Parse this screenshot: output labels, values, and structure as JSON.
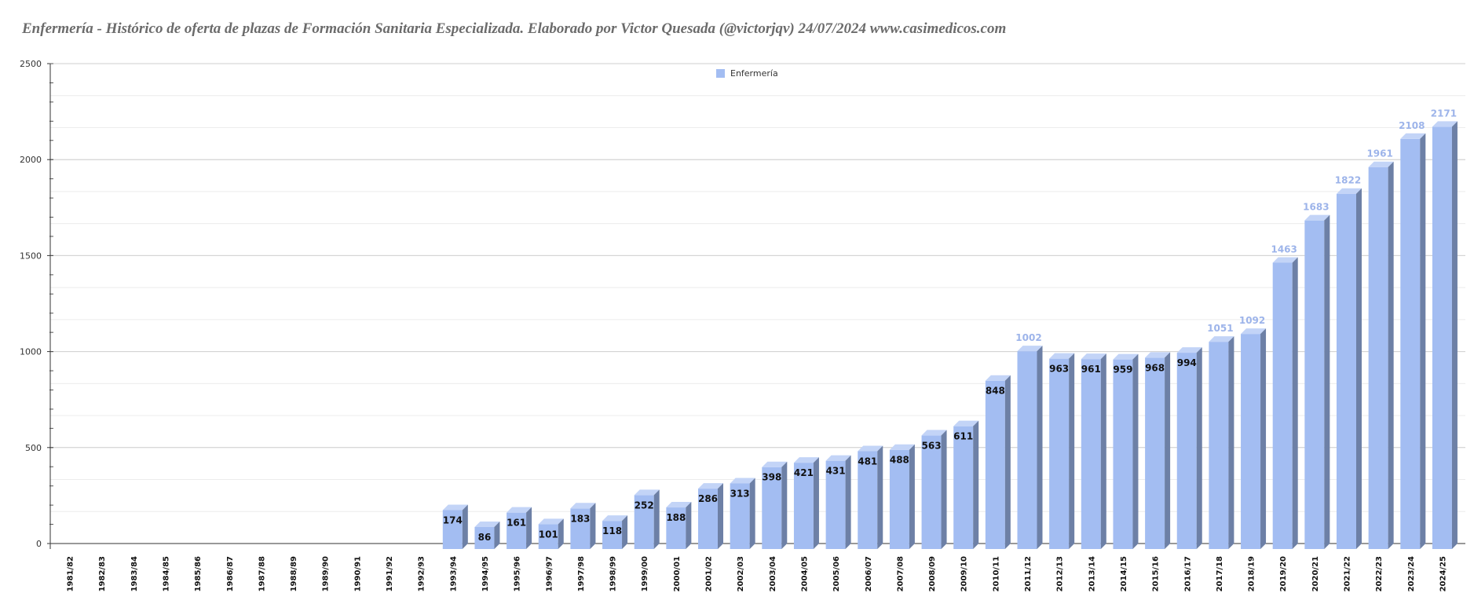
{
  "chart_data": {
    "type": "bar",
    "title": "Enfermería - Histórico de oferta de plazas de Formación Sanitaria Especializada. Elaborado por Victor Quesada (@victorjqv)  24/07/2024 www.casimedicos.com",
    "xlabel": "",
    "ylabel": "",
    "ylim": [
      0,
      2500
    ],
    "yticks": [
      "0",
      "500",
      "1000",
      "1500",
      "2000",
      "2500"
    ],
    "grid": true,
    "legend_position": "top-center",
    "categories": [
      "1981/82",
      "1982/83",
      "1983/84",
      "1984/85",
      "1985/86",
      "1986/87",
      "1987/88",
      "1988/89",
      "1989/90",
      "1990/91",
      "1991/92",
      "1992/93",
      "1993/94",
      "1994/95",
      "1995/96",
      "1996/97",
      "1997/98",
      "1998/99",
      "1999/00",
      "2000/01",
      "2001/02",
      "2002/03",
      "2003/04",
      "2004/05",
      "2005/06",
      "2006/07",
      "2007/08",
      "2008/09",
      "2009/10",
      "2010/11",
      "2011/12",
      "2012/13",
      "2013/14",
      "2014/15",
      "2015/16",
      "2016/17",
      "2017/18",
      "2018/19",
      "2019/20",
      "2020/21",
      "2021/22",
      "2022/23",
      "2023/24",
      "2024/25"
    ],
    "series": [
      {
        "name": "Enfermería",
        "color": "#a3bdf2",
        "values": [
          0,
          0,
          0,
          0,
          0,
          0,
          0,
          0,
          0,
          0,
          0,
          0,
          174,
          86,
          161,
          101,
          183,
          118,
          252,
          188,
          286,
          313,
          398,
          421,
          431,
          481,
          488,
          563,
          611,
          848,
          1002,
          963,
          961,
          959,
          968,
          994,
          1051,
          1092,
          1463,
          1683,
          1822,
          1961,
          2108,
          2171
        ],
        "labels": [
          "",
          "",
          "",
          "",
          "",
          "",
          "",
          "",
          "",
          "",
          "",
          "",
          "174",
          "86",
          "161",
          "101",
          "183",
          "118",
          "252",
          "188",
          "286",
          "313",
          "398",
          "421",
          "431",
          "481",
          "488",
          "563",
          "611",
          "848",
          "1002",
          "963",
          "961",
          "959",
          "968",
          "994",
          "1051",
          "1092",
          "1463",
          "1683",
          "1822",
          "1961",
          "2108",
          "2171"
        ]
      }
    ]
  }
}
